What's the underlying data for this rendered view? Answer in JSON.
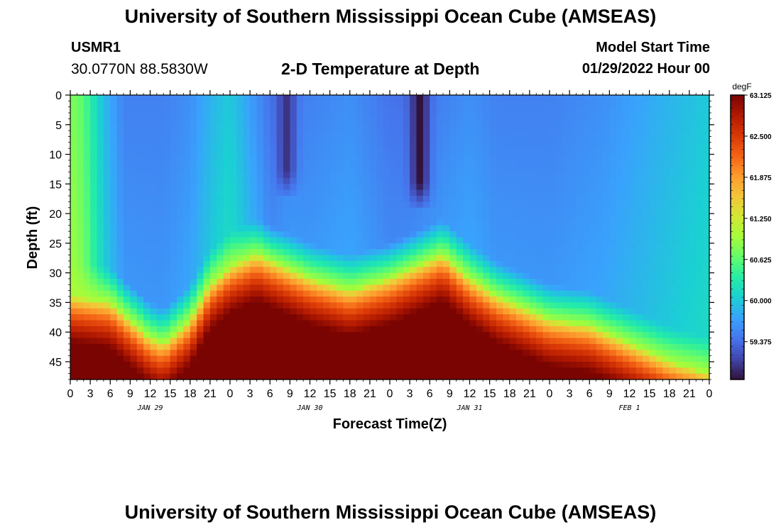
{
  "header": {
    "title": "University of Southern Mississippi Ocean Cube (AMSEAS)",
    "station_id": "USMR1",
    "coords": "30.0770N  88.5830W",
    "plot_title": "2-D Temperature at Depth",
    "start_label": "Model Start Time",
    "start_value": "01/29/2022 Hour 00"
  },
  "footer": {
    "title": "University of Southern Mississippi Ocean Cube (AMSEAS)"
  },
  "chart_data": {
    "type": "heatmap",
    "xlabel": "Forecast Time(Z)",
    "ylabel": "Depth (ft)",
    "x_unit": "hours since model start",
    "xlim": [
      0,
      96
    ],
    "ylim": [
      0,
      48
    ],
    "y_inverted": true,
    "x_tick_labels": [
      "0",
      "3",
      "6",
      "9",
      "12",
      "15",
      "18",
      "21",
      "0",
      "3",
      "6",
      "9",
      "12",
      "15",
      "18",
      "21",
      "0",
      "3",
      "6",
      "9",
      "12",
      "15",
      "18",
      "21",
      "0",
      "3",
      "6",
      "9",
      "12",
      "15",
      "18",
      "21",
      "0"
    ],
    "date_labels": [
      "JAN 29",
      "JAN 30",
      "JAN 31",
      "FEB 1"
    ],
    "y_ticks": [
      0,
      5,
      10,
      15,
      20,
      25,
      30,
      35,
      40,
      45
    ],
    "colorbar": {
      "unit": "degF",
      "min": 58.8,
      "max": 63.125,
      "tick_labels": [
        "63.125",
        "62.500",
        "61.875",
        "61.250",
        "60.625",
        "60.000",
        "59.375"
      ],
      "tick_values": [
        63.125,
        62.5,
        61.875,
        61.25,
        60.625,
        60.0,
        59.375
      ],
      "colormap": [
        "#30123b",
        "#4145ab",
        "#4675ed",
        "#39a2fc",
        "#1bcfd4",
        "#24eca6",
        "#61fc6c",
        "#a4fc3b",
        "#d1e834",
        "#f3c63a",
        "#fe9b2d",
        "#f36315",
        "#d93806",
        "#b11901",
        "#7a0402"
      ]
    },
    "thermocline_depth": {
      "hours": [
        0,
        6,
        9,
        12,
        14,
        18,
        21,
        24,
        28,
        32,
        36,
        42,
        48,
        52,
        56,
        60,
        64,
        68,
        72,
        78,
        84,
        88,
        90,
        93,
        96
      ],
      "depth_ft": [
        34,
        35,
        38,
        41,
        42,
        38,
        32,
        29,
        27,
        29,
        31,
        33,
        31,
        29,
        27,
        31,
        34,
        36,
        38,
        39,
        42,
        44,
        45,
        46,
        47
      ]
    },
    "surface_temp_degF": {
      "hours": [
        0,
        2,
        5,
        8,
        14,
        18,
        22,
        24,
        28,
        30,
        33,
        36,
        42,
        48,
        51,
        56,
        60,
        64,
        72,
        80,
        84,
        88,
        92,
        96
      ],
      "value": [
        60.8,
        60.6,
        59.9,
        59.5,
        59.5,
        59.6,
        59.9,
        60.0,
        59.6,
        59.4,
        59.5,
        59.5,
        59.6,
        59.4,
        59.4,
        59.5,
        59.6,
        59.5,
        59.5,
        59.6,
        59.7,
        59.8,
        59.9,
        60.0
      ]
    },
    "cold_cores": [
      {
        "hour": 32.5,
        "depth_max_ft": 15,
        "min_value_degF": 59.0
      },
      {
        "hour": 52.5,
        "depth_max_ft": 17,
        "min_value_degF": 58.8
      }
    ],
    "deep_max_temp_degF": 63.1
  }
}
